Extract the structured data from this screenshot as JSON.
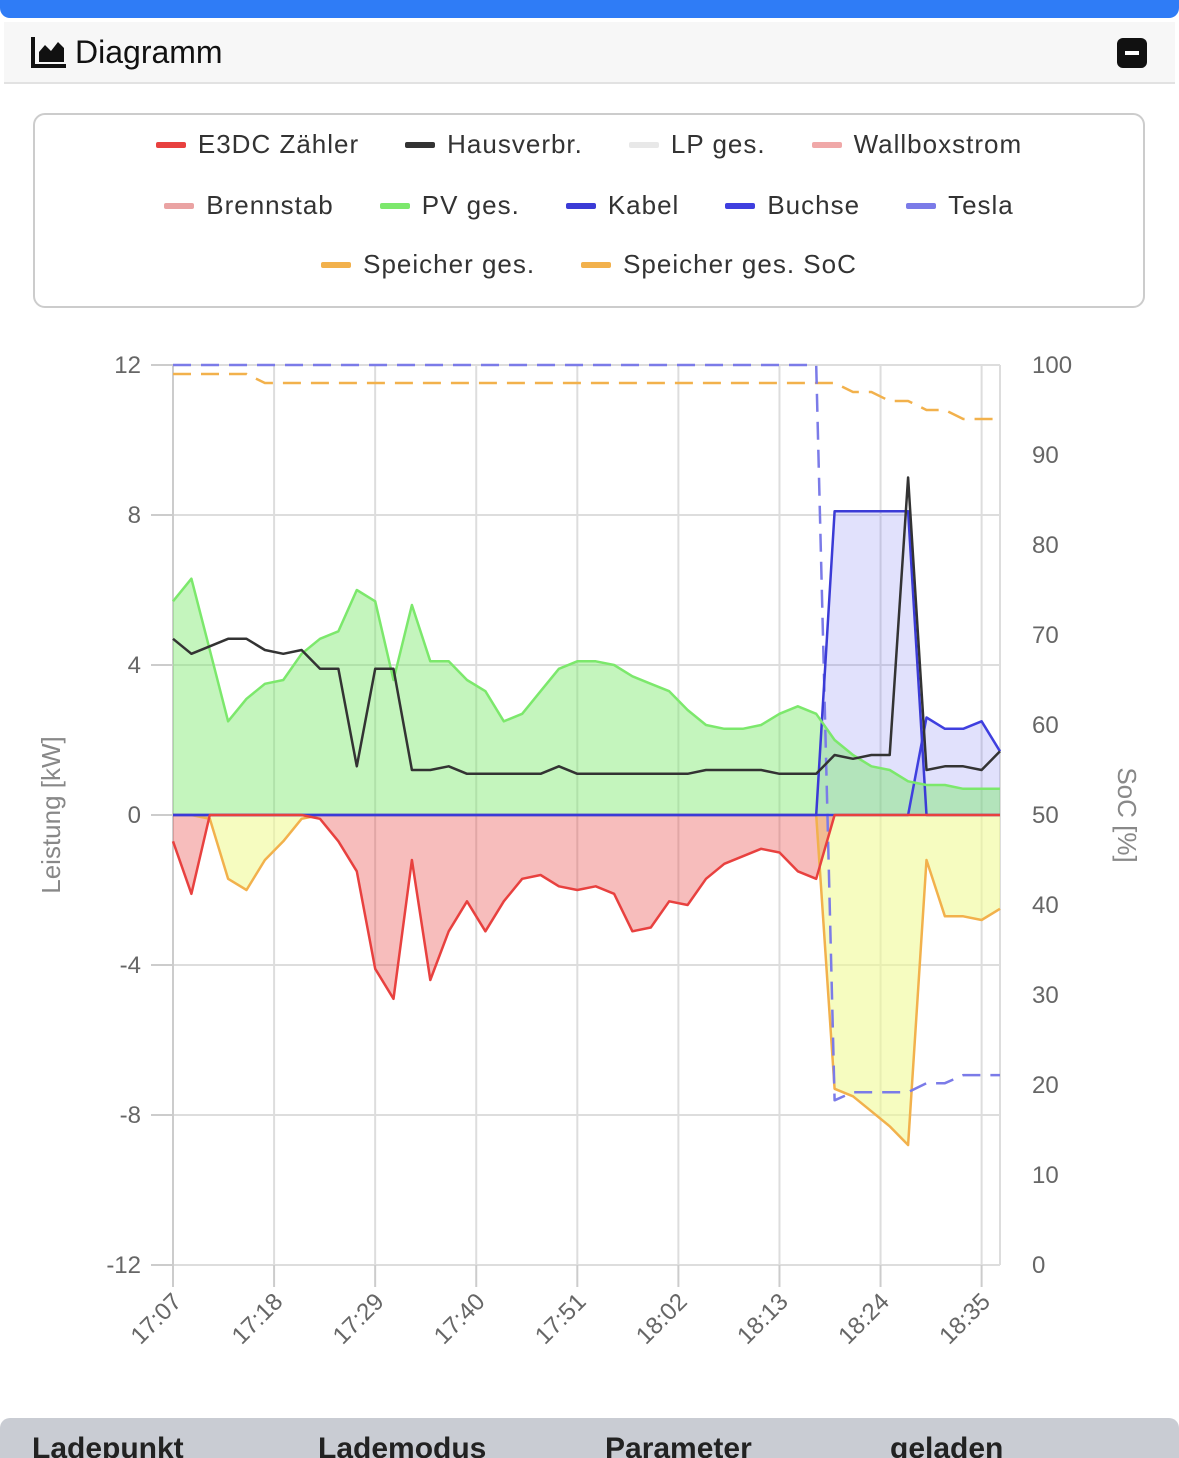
{
  "header": {
    "title": "Diagramm"
  },
  "chart_data": {
    "type": "line",
    "x": [
      "17:07",
      "17:09",
      "17:11",
      "17:13",
      "17:15",
      "17:17",
      "17:19",
      "17:21",
      "17:23",
      "17:25",
      "17:27",
      "17:29",
      "17:31",
      "17:33",
      "17:35",
      "17:37",
      "17:39",
      "17:41",
      "17:43",
      "17:45",
      "17:47",
      "17:49",
      "17:51",
      "17:53",
      "17:55",
      "17:57",
      "17:59",
      "18:01",
      "18:03",
      "18:05",
      "18:07",
      "18:09",
      "18:11",
      "18:13",
      "18:15",
      "18:17",
      "18:19",
      "18:21",
      "18:23",
      "18:25",
      "18:27",
      "18:29",
      "18:31",
      "18:33",
      "18:35",
      "18:37"
    ],
    "xlim": [
      "17:07",
      "18:37"
    ],
    "xticks": [
      "17:07",
      "17:18",
      "17:29",
      "17:40",
      "17:51",
      "18:02",
      "18:13",
      "18:24",
      "18:35"
    ],
    "ylabel": "Leistung [kW]",
    "ylim": [
      -12,
      12
    ],
    "yticks": [
      -12,
      -8,
      -4,
      0,
      4,
      8,
      12
    ],
    "y2label": "SoC [%]",
    "y2lim": [
      0,
      100
    ],
    "y2ticks": [
      0,
      10,
      20,
      30,
      40,
      50,
      60,
      70,
      80,
      90,
      100
    ],
    "grid": true,
    "series": [
      {
        "name": "E3DC Zähler",
        "color": "#e8413f",
        "fill": "rgba(232,65,63,0.35)",
        "values": [
          -0.7,
          -2.1,
          0,
          0,
          0,
          0,
          0,
          0,
          -0.1,
          -0.7,
          -1.5,
          -4.1,
          -4.9,
          -1.2,
          -4.4,
          -3.1,
          -2.3,
          -3.1,
          -2.3,
          -1.7,
          -1.6,
          -1.9,
          -2.0,
          -1.9,
          -2.1,
          -3.1,
          -3.0,
          -2.3,
          -2.4,
          -1.7,
          -1.3,
          -1.1,
          -0.9,
          -1.0,
          -1.5,
          -1.7,
          0,
          0,
          0,
          0,
          0,
          0,
          0,
          0,
          0,
          0
        ]
      },
      {
        "name": "Hausverbr.",
        "color": "#333333",
        "values": [
          4.7,
          4.3,
          4.5,
          4.7,
          4.7,
          4.4,
          4.3,
          4.4,
          3.9,
          3.9,
          1.3,
          3.9,
          3.9,
          1.2,
          1.2,
          1.3,
          1.1,
          1.1,
          1.1,
          1.1,
          1.1,
          1.3,
          1.1,
          1.1,
          1.1,
          1.1,
          1.1,
          1.1,
          1.1,
          1.2,
          1.2,
          1.2,
          1.2,
          1.1,
          1.1,
          1.1,
          1.6,
          1.5,
          1.6,
          1.6,
          9.0,
          1.2,
          1.3,
          1.3,
          1.2,
          1.7
        ]
      },
      {
        "name": "LP ges.",
        "color": "#e8e8e8",
        "values": [
          null,
          null,
          null,
          null,
          null,
          null,
          null,
          null,
          null,
          null,
          null,
          null,
          null,
          null,
          null,
          null,
          null,
          null,
          null,
          null,
          null,
          null,
          null,
          null,
          null,
          null,
          null,
          null,
          null,
          null,
          null,
          null,
          null,
          null,
          null,
          null,
          null,
          null,
          null,
          null,
          null,
          null,
          null,
          null,
          null,
          null
        ]
      },
      {
        "name": "Wallboxstrom",
        "color": "#f0a8a8",
        "values": [
          null,
          null,
          null,
          null,
          null,
          null,
          null,
          null,
          null,
          null,
          null,
          null,
          null,
          null,
          null,
          null,
          null,
          null,
          null,
          null,
          null,
          null,
          null,
          null,
          null,
          null,
          null,
          null,
          null,
          null,
          null,
          null,
          null,
          null,
          null,
          null,
          null,
          null,
          null,
          null,
          null,
          null,
          null,
          null,
          null,
          null
        ]
      },
      {
        "name": "Brennstab",
        "color": "#eaa3a3",
        "values": [
          null,
          null,
          null,
          null,
          null,
          null,
          null,
          null,
          null,
          null,
          null,
          null,
          null,
          null,
          null,
          null,
          null,
          null,
          null,
          null,
          null,
          null,
          null,
          null,
          null,
          null,
          null,
          null,
          null,
          null,
          null,
          null,
          null,
          null,
          null,
          null,
          null,
          null,
          null,
          null,
          null,
          null,
          null,
          null,
          null,
          null
        ]
      },
      {
        "name": "PV ges.",
        "color": "#7ce86c",
        "fill": "rgba(124,232,108,0.45)",
        "values": [
          5.7,
          6.3,
          4.4,
          2.5,
          3.1,
          3.5,
          3.6,
          4.3,
          4.7,
          4.9,
          6.0,
          5.7,
          3.6,
          5.6,
          4.1,
          4.1,
          3.6,
          3.3,
          2.5,
          2.7,
          3.3,
          3.9,
          4.1,
          4.1,
          4.0,
          3.7,
          3.5,
          3.3,
          2.8,
          2.4,
          2.3,
          2.3,
          2.4,
          2.7,
          2.9,
          2.7,
          2.0,
          1.6,
          1.3,
          1.2,
          0.9,
          0.8,
          0.8,
          0.7,
          0.7,
          0.7
        ]
      },
      {
        "name": "Kabel",
        "color": "#3b3bd6",
        "fill": "rgba(120,120,240,0.22)",
        "values": [
          0,
          0,
          0,
          0,
          0,
          0,
          0,
          0,
          0,
          0,
          0,
          0,
          0,
          0,
          0,
          0,
          0,
          0,
          0,
          0,
          0,
          0,
          0,
          0,
          0,
          0,
          0,
          0,
          0,
          0,
          0,
          0,
          0,
          0,
          0,
          0,
          8.1,
          8.1,
          8.1,
          8.1,
          8.1,
          0,
          0,
          0,
          0,
          0
        ]
      },
      {
        "name": "Buchse",
        "color": "#3f3fdf",
        "fill": "rgba(120,120,240,0.22)",
        "values": [
          0,
          0,
          0,
          0,
          0,
          0,
          0,
          0,
          0,
          0,
          0,
          0,
          0,
          0,
          0,
          0,
          0,
          0,
          0,
          0,
          0,
          0,
          0,
          0,
          0,
          0,
          0,
          0,
          0,
          0,
          0,
          0,
          0,
          0,
          0,
          0,
          0,
          0,
          0,
          0,
          0,
          2.6,
          2.3,
          2.3,
          2.5,
          1.7
        ]
      },
      {
        "name": "Tesla",
        "color": "#7b7be8",
        "axis": "y2",
        "dashed": true,
        "values": [
          100,
          100,
          100,
          100,
          100,
          100,
          100,
          100,
          100,
          100,
          100,
          100,
          100,
          100,
          100,
          100,
          100,
          100,
          100,
          100,
          100,
          100,
          100,
          100,
          100,
          100,
          100,
          100,
          100,
          100,
          100,
          100,
          100,
          100,
          100,
          100,
          18.3,
          19.2,
          19.2,
          19.2,
          19.2,
          20.2,
          20.2,
          21.1,
          21.1,
          21.1
        ]
      },
      {
        "name": "Speicher ges.",
        "color": "#f2b14c",
        "fill": "rgba(240,250,150,0.6)",
        "values": [
          0,
          0,
          -0.1,
          -1.7,
          -2.0,
          -1.2,
          -0.7,
          -0.1,
          0,
          0,
          0,
          0,
          0,
          0,
          0,
          0,
          0,
          0,
          0,
          0,
          0,
          0,
          0,
          0,
          0,
          0,
          0,
          0,
          0,
          0,
          0,
          0,
          0,
          0,
          0,
          0,
          -7.3,
          -7.5,
          -7.9,
          -8.3,
          -8.8,
          -1.2,
          -2.7,
          -2.7,
          -2.8,
          -2.5
        ]
      },
      {
        "name": "Speicher ges. SoC",
        "color": "#f2b14c",
        "axis": "y2",
        "dashed": true,
        "values": [
          99,
          99,
          99,
          99,
          99,
          98,
          98,
          98,
          98,
          98,
          98,
          98,
          98,
          98,
          98,
          98,
          98,
          98,
          98,
          98,
          98,
          98,
          98,
          98,
          98,
          98,
          98,
          98,
          98,
          98,
          98,
          98,
          98,
          98,
          98,
          98,
          98,
          97,
          97,
          96,
          96,
          95,
          95,
          94,
          94,
          94
        ]
      }
    ]
  },
  "table": {
    "columns": [
      "Ladepunkt",
      "Lademodus",
      "Parameter",
      "geladen"
    ]
  }
}
